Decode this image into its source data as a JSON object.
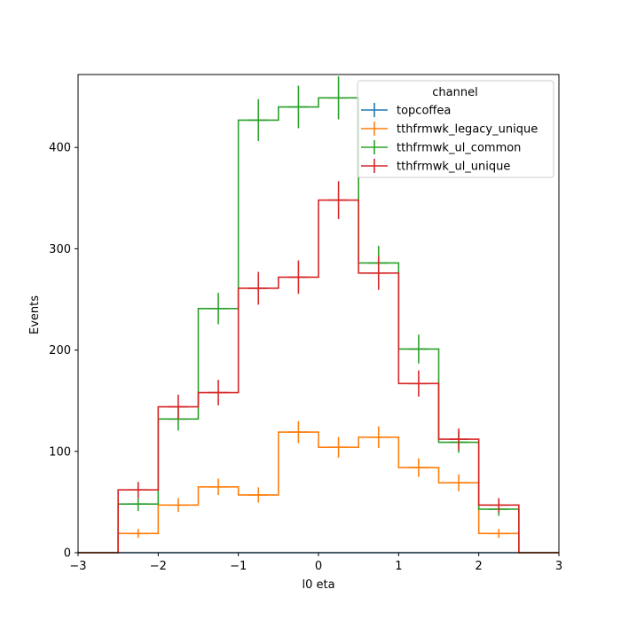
{
  "chart_data": {
    "type": "step-histogram",
    "xlabel": "l0 eta",
    "ylabel": "Events",
    "xlim": [
      -3,
      3
    ],
    "ylim": [
      0,
      472
    ],
    "x_ticks": [
      -3,
      -2,
      -1,
      0,
      1,
      2,
      3
    ],
    "x_tick_labels": [
      "−3",
      "−2",
      "−1",
      "0",
      "1",
      "2",
      "3"
    ],
    "y_ticks": [
      0,
      100,
      200,
      300,
      400
    ],
    "y_tick_labels": [
      "0",
      "100",
      "200",
      "300",
      "400"
    ],
    "bin_edges": [
      -3,
      -2.5,
      -2,
      -1.5,
      -1,
      -0.5,
      0,
      0.5,
      1,
      1.5,
      2,
      2.5,
      3
    ],
    "legend": {
      "title": "channel",
      "placement": "top-right"
    },
    "series": [
      {
        "name": "topcoffea",
        "color": "#1f77b4",
        "values": [
          0,
          0,
          0,
          0,
          0,
          0,
          0,
          0,
          0,
          0,
          0,
          0
        ],
        "errors": [
          0,
          0,
          0,
          0,
          0,
          0,
          0,
          0,
          0,
          0,
          0,
          0
        ]
      },
      {
        "name": "tthfrmwk_legacy_unique",
        "color": "#ff7f0e",
        "values": [
          0,
          19,
          47,
          65,
          57,
          119,
          104,
          114,
          84,
          69,
          19,
          0
        ],
        "errors": [
          0,
          4.4,
          6.9,
          8.1,
          7.5,
          10.9,
          10.2,
          10.7,
          9.2,
          8.3,
          4.4,
          0
        ]
      },
      {
        "name": "tthfrmwk_ul_common",
        "color": "#2ca02c",
        "values": [
          0,
          48,
          132,
          241,
          427,
          440,
          449,
          286,
          201,
          109,
          43,
          0
        ],
        "errors": [
          0,
          6.9,
          11.5,
          15.5,
          20.7,
          21.0,
          21.2,
          16.9,
          14.2,
          10.4,
          6.6,
          0
        ]
      },
      {
        "name": "tthfrmwk_ul_unique",
        "color": "#d62728",
        "values": [
          0,
          62,
          144,
          158,
          261,
          272,
          348,
          276,
          167,
          112,
          47,
          0
        ],
        "errors": [
          0,
          7.9,
          12.0,
          12.6,
          16.2,
          16.5,
          18.7,
          16.6,
          12.9,
          10.6,
          6.9,
          0
        ]
      }
    ]
  }
}
